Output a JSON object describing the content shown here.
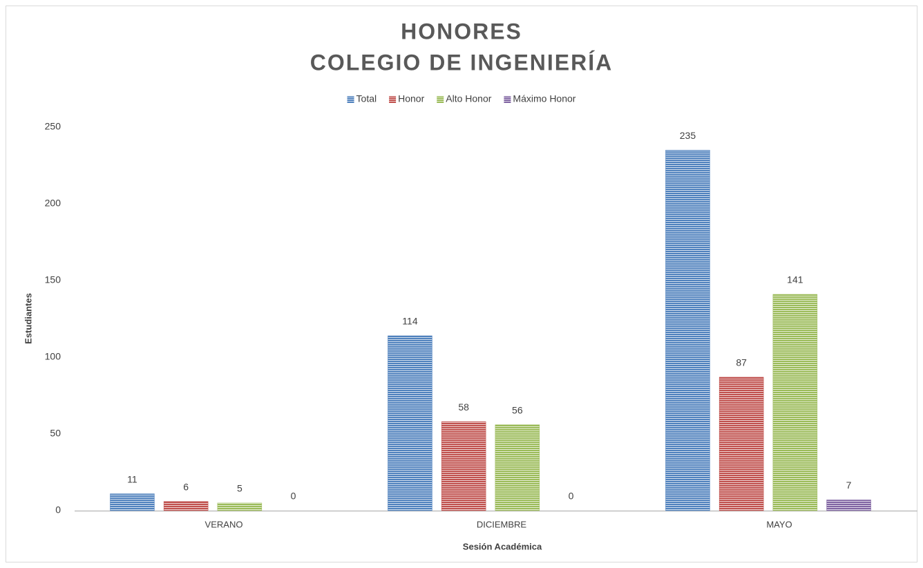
{
  "chart_data": {
    "type": "bar",
    "title": "HONORES",
    "subtitle": "COLEGIO DE INGENIERÍA",
    "x_label": "Sesión Académica",
    "y_label": "Estudiantes",
    "categories": [
      "VERANO",
      "DICIEMBRE",
      "MAYO"
    ],
    "series": [
      {
        "name": "Total",
        "color": "#4f81bd",
        "values": [
          11,
          114,
          235
        ]
      },
      {
        "name": "Honor",
        "color": "#c0504d",
        "values": [
          6,
          58,
          87
        ]
      },
      {
        "name": "Alto Honor",
        "color": "#9bbb59",
        "values": [
          5,
          56,
          141
        ]
      },
      {
        "name": "Máximo Honor",
        "color": "#8064a2",
        "values": [
          0,
          0,
          7
        ]
      }
    ],
    "ylim": [
      0,
      250
    ],
    "yticks": [
      0,
      50,
      100,
      150,
      200,
      250
    ],
    "grid": false,
    "legend": "top"
  }
}
